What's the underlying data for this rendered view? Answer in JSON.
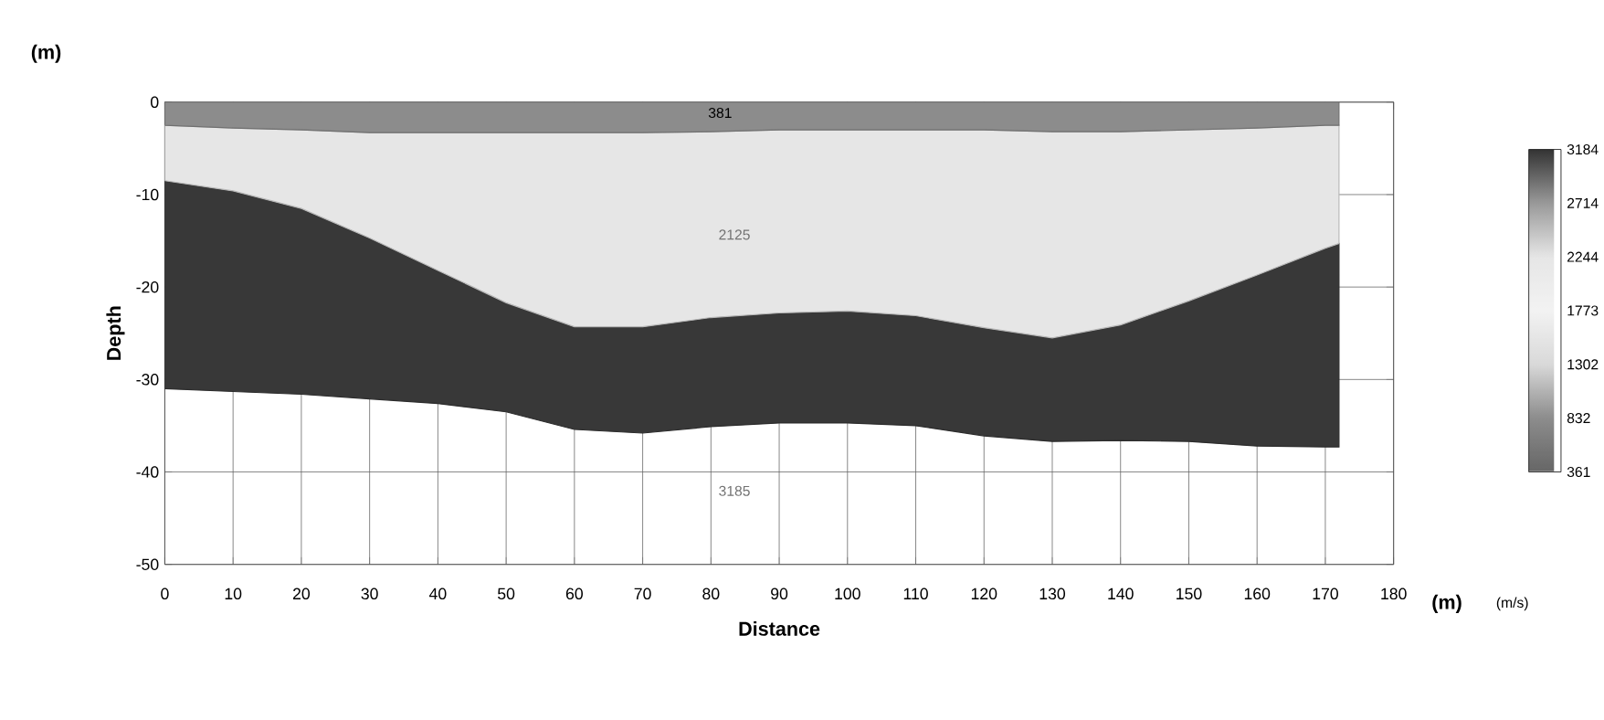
{
  "chart_data": {
    "type": "area",
    "stacked": true,
    "xlabel": "Distance",
    "ylabel": "Depth",
    "clabel": "(m/s)",
    "x": [
      0,
      10,
      20,
      30,
      40,
      50,
      60,
      70,
      80,
      90,
      100,
      110,
      120,
      130,
      140,
      150,
      160,
      170,
      172
    ],
    "series": [
      {
        "color": "#8c8c8c",
        "values": [
          -2.5,
          -2.8,
          -3,
          -3.3,
          -3.3,
          -3.3,
          -3.3,
          -3.3,
          -3.2,
          -3,
          -3,
          -3,
          -3,
          -3.2,
          -3.2,
          -3,
          -2.8,
          -2.5,
          -2.5
        ]
      },
      {
        "color": "#e6e6e6",
        "values": [
          -6.0,
          -6.8,
          -8.5,
          -11.4,
          -14.9,
          -18.4,
          -21.0,
          -21.0,
          -20.1,
          -19.8,
          -19.6,
          -20.1,
          -21.4,
          -22.3,
          -20.9,
          -18.5,
          -15.9,
          -13.3,
          -12.8
        ]
      },
      {
        "color": "#383838",
        "values": [
          -22.5,
          -21.7,
          -20.1,
          -17.4,
          -14.4,
          -11.8,
          -11.1,
          -11.5,
          -11.8,
          -11.9,
          -12.1,
          -11.9,
          -11.7,
          -11.2,
          -12.5,
          -15.2,
          -18.5,
          -21.5,
          -22.0
        ]
      }
    ],
    "xlim": [
      0,
      180
    ],
    "ylim": [
      -50,
      0
    ],
    "xticks": [
      0,
      10,
      20,
      30,
      40,
      50,
      60,
      70,
      80,
      90,
      100,
      110,
      120,
      130,
      140,
      150,
      160,
      170,
      180
    ],
    "yticks": [
      -50,
      -40,
      -30,
      -20,
      -10,
      0
    ],
    "clim": [
      361,
      3184
    ],
    "cticks": [
      361,
      832,
      1302,
      1773,
      2244,
      2714,
      3184
    ],
    "grid": true,
    "annotations": [
      "(m)",
      "(m)",
      "381",
      "2125",
      "3185"
    ]
  }
}
